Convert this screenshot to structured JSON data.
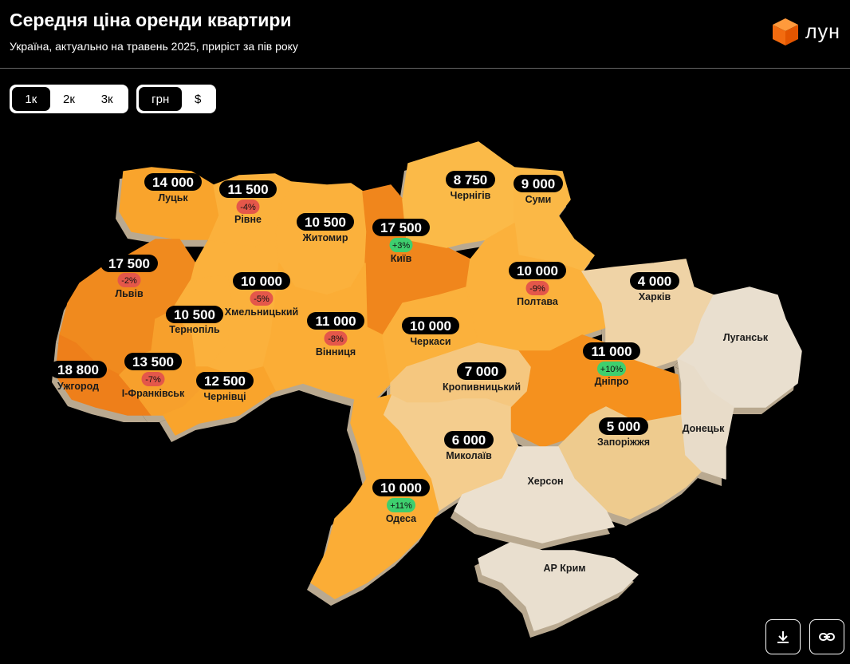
{
  "header": {
    "title": "Середня ціна оренди квартири",
    "subtitle": "Україна, актуально на травень 2025, приріст за пів року",
    "logo_text": "лун",
    "logo_color": "#f26b0f"
  },
  "filters": {
    "rooms": [
      {
        "label": "1к",
        "active": true
      },
      {
        "label": "2к",
        "active": false
      },
      {
        "label": "3к",
        "active": false
      }
    ],
    "currency": [
      {
        "label": "грн",
        "active": true
      },
      {
        "label": "$",
        "active": false
      }
    ]
  },
  "actions": {
    "download_icon": "download-icon",
    "link_icon": "link-icon"
  },
  "colors": {
    "positive": "#3ecf6e",
    "negative": "#e4574a"
  },
  "regions": [
    {
      "id": "volyn",
      "city": "Луцьк",
      "price": "14 000",
      "delta": null,
      "fill": "#f9a42c"
    },
    {
      "id": "rivne",
      "city": "Рівне",
      "price": "11 500",
      "delta": "-4%",
      "fill": "#fbb13c"
    },
    {
      "id": "zhytomyr",
      "city": "Житомир",
      "price": "10 500",
      "delta": null,
      "fill": "#fbb13c"
    },
    {
      "id": "kyiv",
      "city": "Київ",
      "price": "17 500",
      "delta": "+3%",
      "fill": "#f0861c"
    },
    {
      "id": "chernihiv",
      "city": "Чернігів",
      "price": "8 750",
      "delta": null,
      "fill": "#fbba48"
    },
    {
      "id": "sumy",
      "city": "Суми",
      "price": "9 000",
      "delta": null,
      "fill": "#fbb846"
    },
    {
      "id": "lviv",
      "city": "Львів",
      "price": "17 500",
      "delta": "-2%",
      "fill": "#f08a1e"
    },
    {
      "id": "khmelnytskyi",
      "city": "Хмельницький",
      "price": "10 000",
      "delta": "-5%",
      "fill": "#fbb13c"
    },
    {
      "id": "ternopil",
      "city": "Тернопіль",
      "price": "10 500",
      "delta": null,
      "fill": "#fbb13c"
    },
    {
      "id": "vinnytsia",
      "city": "Вінниця",
      "price": "11 000",
      "delta": "-8%",
      "fill": "#fbad36"
    },
    {
      "id": "cherkasy",
      "city": "Черкаси",
      "price": "10 000",
      "delta": null,
      "fill": "#fbb13c"
    },
    {
      "id": "poltava",
      "city": "Полтава",
      "price": "10 000",
      "delta": "-9%",
      "fill": "#fbb13c"
    },
    {
      "id": "kharkiv",
      "city": "Харків",
      "price": "4 000",
      "delta": null,
      "fill": "#efd3a6"
    },
    {
      "id": "luhansk",
      "city": "Луганськ",
      "price": null,
      "delta": null,
      "fill": "#e9dfcf"
    },
    {
      "id": "dnipro",
      "city": "Дніпро",
      "price": "11 000",
      "delta": "+10%",
      "fill": "#f5911e"
    },
    {
      "id": "kropyvnytskyi",
      "city": "Кропивницький",
      "price": "7 000",
      "delta": null,
      "fill": "#f5c77f"
    },
    {
      "id": "zakarpattia",
      "city": "Ужгород",
      "price": "18 800",
      "delta": null,
      "fill": "#ee7f1a"
    },
    {
      "id": "ivano-frankivsk",
      "city": "І-Франківськ",
      "price": "13 500",
      "delta": "-7%",
      "fill": "#f7a02c"
    },
    {
      "id": "chernivtsi",
      "city": "Чернівці",
      "price": "12 500",
      "delta": null,
      "fill": "#f9a42c"
    },
    {
      "id": "mykolaiv",
      "city": "Миколаїв",
      "price": "6 000",
      "delta": null,
      "fill": "#f4cd8e"
    },
    {
      "id": "zaporizhzhia",
      "city": "Запоріжжя",
      "price": "5 000",
      "delta": null,
      "fill": "#eecb8e"
    },
    {
      "id": "donetsk",
      "city": "Донецьк",
      "price": null,
      "delta": null,
      "fill": "#e8dcc9"
    },
    {
      "id": "kherson",
      "city": "Херсон",
      "price": null,
      "delta": null,
      "fill": "#ebe0cf"
    },
    {
      "id": "odesa",
      "city": "Одеса",
      "price": "10 000",
      "delta": "+11%",
      "fill": "#fbad36"
    },
    {
      "id": "crimea",
      "city": "АР Крим",
      "price": null,
      "delta": null,
      "fill": "#e9dfcf"
    }
  ]
}
